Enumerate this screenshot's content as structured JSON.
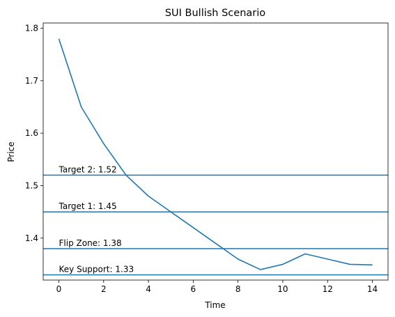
{
  "chart_data": {
    "type": "line",
    "title": "SUI Bullish Scenario",
    "xlabel": "Time",
    "ylabel": "Price",
    "xlim": [
      -0.7,
      14.7
    ],
    "ylim": [
      1.32,
      1.81
    ],
    "x_ticks": [
      0,
      2,
      4,
      6,
      8,
      10,
      12,
      14
    ],
    "y_ticks": [
      1.4,
      1.5,
      1.6,
      1.7,
      1.8
    ],
    "grid": false,
    "color": "#1f77b4",
    "series": [
      {
        "x": [
          0,
          1,
          2,
          3,
          4,
          5,
          6,
          7,
          8,
          9,
          10,
          11,
          12,
          13,
          14
        ],
        "values": [
          1.78,
          1.65,
          1.58,
          1.52,
          1.48,
          1.45,
          1.42,
          1.39,
          1.36,
          1.34,
          1.35,
          1.37,
          1.36,
          1.35,
          1.349
        ]
      }
    ],
    "reference_lines": [
      {
        "label": "Target 2: 1.52",
        "value": 1.52
      },
      {
        "label": "Target 1: 1.45",
        "value": 1.45
      },
      {
        "label": "Flip Zone: 1.38",
        "value": 1.38
      },
      {
        "label": "Key Support: 1.33",
        "value": 1.33
      }
    ]
  }
}
